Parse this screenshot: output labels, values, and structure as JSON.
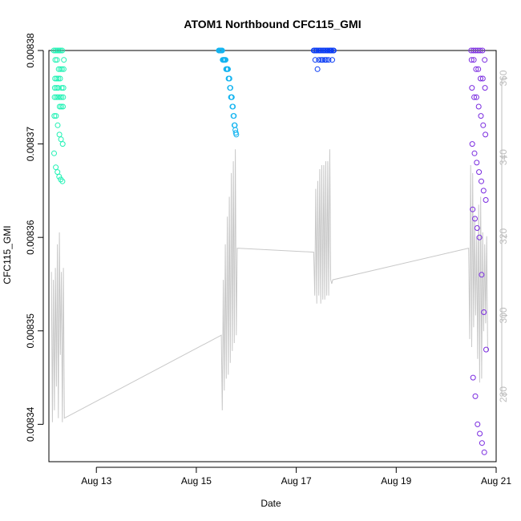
{
  "chart_data": {
    "type": "scatter",
    "title": "ATOM1 Northbound CFC115_GMI",
    "xlabel": "Date",
    "ylabel": "CFC115_GMI",
    "y2label": "",
    "x_ticks": [
      {
        "label": "Aug 13",
        "day": 13
      },
      {
        "label": "Aug 15",
        "day": 15
      },
      {
        "label": "Aug 17",
        "day": 17
      },
      {
        "label": "Aug 19",
        "day": 19
      },
      {
        "label": "Aug 21",
        "day": 21
      }
    ],
    "xlim_days": [
      12.05,
      21.0
    ],
    "ylim": [
      0.008336,
      0.00838
    ],
    "y_ticks": [
      "0.00834",
      "0.00835",
      "0.00836",
      "0.00837",
      "0.00838"
    ],
    "y2lim": [
      263,
      367
    ],
    "y2_ticks": [
      "280",
      "300",
      "320",
      "340",
      "360"
    ],
    "grid": false,
    "legend": "none",
    "colors": {
      "segment1": "#1FF2B4",
      "segment2": "#14B4F0",
      "segment3": "#0A3CF5",
      "segment4": "#7A2BE0",
      "secondary_line": "#c8c8c8",
      "axis": "#000000",
      "right_axis": "#bdbdbd"
    },
    "series": [
      {
        "color": "#1FF2B4",
        "x_range": [
          12.15,
          12.35
        ],
        "values": [
          0.00838,
          0.00838,
          0.00838,
          0.00838,
          0.00838,
          0.00838,
          0.008379,
          0.008379,
          0.008379,
          0.008378,
          0.008378,
          0.008378,
          0.008378,
          0.008377,
          0.008377,
          0.008377,
          0.008377,
          0.008376,
          0.008376,
          0.008376,
          0.008376,
          0.008376,
          0.008375,
          0.008375,
          0.008375,
          0.008375,
          0.008375,
          0.008375,
          0.008374,
          0.008374,
          0.008374,
          0.008373,
          0.008373,
          0.008372,
          0.008371,
          0.0083705,
          0.00837,
          0.008369,
          0.0083675,
          0.008367,
          0.0083665,
          0.0083662,
          0.008366
        ]
      },
      {
        "color": "#14B4F0",
        "x_range": [
          15.45,
          15.8
        ],
        "values": [
          0.00838,
          0.00838,
          0.00838,
          0.00838,
          0.00838,
          0.00838,
          0.00838,
          0.00838,
          0.008379,
          0.008379,
          0.008379,
          0.008379,
          0.008379,
          0.008379,
          0.008379,
          0.008378,
          0.008378,
          0.008378,
          0.008378,
          0.008378,
          0.008377,
          0.008377,
          0.008377,
          0.008376,
          0.008376,
          0.008375,
          0.008375,
          0.008375,
          0.008374,
          0.008374,
          0.008373,
          0.008373,
          0.008372,
          0.008372,
          0.0083715,
          0.0083712,
          0.008371
        ]
      },
      {
        "color": "#0A3CF5",
        "x_range": [
          17.35,
          17.75
        ],
        "values": [
          0.00838,
          0.00838,
          0.00838,
          0.00838,
          0.00838,
          0.00838,
          0.00838,
          0.00838,
          0.00838,
          0.00838,
          0.00838,
          0.00838,
          0.00838,
          0.00838,
          0.00838,
          0.00838,
          0.00838,
          0.00838,
          0.00838,
          0.008379,
          0.008379,
          0.008379,
          0.008379,
          0.008379,
          0.008379,
          0.008379,
          0.008379,
          0.008378
        ]
      },
      {
        "color": "#7A2BE0",
        "x_range": [
          20.5,
          20.8
        ],
        "values": [
          0.00838,
          0.00838,
          0.00838,
          0.00838,
          0.00838,
          0.00838,
          0.008379,
          0.008379,
          0.008379,
          0.008378,
          0.008378,
          0.008377,
          0.008377,
          0.008376,
          0.008376,
          0.008375,
          0.008375,
          0.008374,
          0.008373,
          0.008372,
          0.008371,
          0.00837,
          0.008369,
          0.008368,
          0.008367,
          0.008366,
          0.008365,
          0.008364,
          0.008363,
          0.008362,
          0.008361,
          0.00836,
          0.008356,
          0.008352,
          0.008348,
          0.008345,
          0.008343,
          0.00834,
          0.008339,
          0.008338,
          0.008337
        ]
      }
    ],
    "secondary_series": {
      "color": "#c8c8c8",
      "x": [
        12.1,
        12.12,
        12.14,
        12.16,
        12.18,
        12.2,
        12.22,
        12.24,
        12.26,
        12.28,
        12.3,
        12.32,
        12.34,
        12.36,
        15.5,
        15.52,
        15.54,
        15.56,
        15.58,
        15.6,
        15.62,
        15.64,
        15.66,
        15.68,
        15.7,
        15.72,
        15.74,
        15.76,
        15.78,
        15.8,
        15.82,
        17.35,
        17.37,
        17.39,
        17.41,
        17.43,
        17.45,
        17.47,
        17.49,
        17.51,
        17.53,
        17.55,
        17.57,
        17.59,
        17.61,
        17.63,
        17.65,
        17.67,
        17.69,
        17.71,
        17.73,
        20.45,
        20.47,
        20.49,
        20.51,
        20.53,
        20.55,
        20.57,
        20.59,
        20.61,
        20.63,
        20.65,
        20.67,
        20.69,
        20.71,
        20.73,
        20.75,
        20.77,
        20.79,
        20.81,
        20.83
      ],
      "values": [
        311,
        273,
        309,
        276,
        312,
        282,
        318,
        274,
        321,
        290,
        311,
        273,
        312,
        274,
        295,
        276,
        309,
        281,
        318,
        284,
        325,
        285,
        330,
        288,
        336,
        291,
        339,
        293,
        342,
        295,
        317,
        316,
        305,
        332,
        303,
        334,
        305,
        337,
        303,
        338,
        304,
        338,
        304,
        339,
        305,
        339,
        305,
        342,
        309,
        308,
        309,
        317,
        294,
        338,
        292,
        336,
        297,
        325,
        300,
        320,
        289,
        328,
        283,
        330,
        284,
        321,
        296,
        318,
        298,
        320,
        291
      ]
    }
  }
}
